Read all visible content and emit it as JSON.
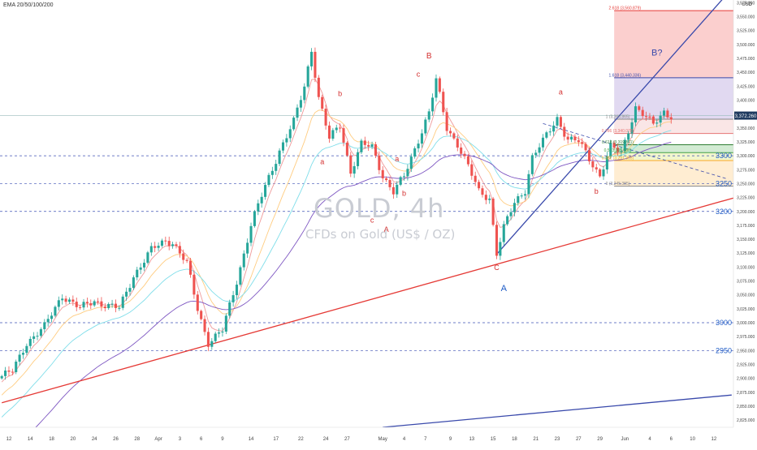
{
  "header": {
    "indicator_legend": "EMA 20/50/100/200",
    "currency": "USD"
  },
  "watermark": {
    "symbol": "GOLD, 4h",
    "description": "CFDs on Gold (US$ / OZ)"
  },
  "current_price_tag": "3,372.260",
  "colors": {
    "up": "#26a69a",
    "down": "#ef5350",
    "trendline_red": "#e53935",
    "trendline_blue": "#3949ab",
    "wave_red": "#d32f2f",
    "wave_blue": "#1e5bc6",
    "ema20": "#ef9a9a",
    "ema50": "#ffcc80",
    "ema100": "#80deea",
    "ema200": "#7e57c2",
    "price_tag_bg": "#1e3a5f"
  },
  "chart_data": {
    "type": "candlestick",
    "symbol": "GOLD",
    "timeframe": "4h",
    "title": "GOLD, 4h",
    "subtitle": "CFDs on Gold (US$ / OZ)",
    "ylim": [
      2812,
      3580
    ],
    "y_ticks": [
      2825,
      2850,
      2875,
      2900,
      2925,
      2950,
      2975,
      3000,
      3025,
      3050,
      3075,
      3100,
      3125,
      3150,
      3175,
      3200,
      3225,
      3250,
      3275,
      3300,
      3325,
      3350,
      3375,
      3400,
      3425,
      3450,
      3475,
      3500,
      3525,
      3550,
      3575
    ],
    "x_ticks": [
      {
        "label": "12",
        "slot": 2
      },
      {
        "label": "14",
        "slot": 8
      },
      {
        "label": "18",
        "slot": 14
      },
      {
        "label": "20",
        "slot": 20
      },
      {
        "label": "24",
        "slot": 26
      },
      {
        "label": "26",
        "slot": 32
      },
      {
        "label": "28",
        "slot": 38
      },
      {
        "label": "Apr",
        "slot": 44
      },
      {
        "label": "3",
        "slot": 50
      },
      {
        "label": "6",
        "slot": 56
      },
      {
        "label": "9",
        "slot": 62
      },
      {
        "label": "14",
        "slot": 70
      },
      {
        "label": "17",
        "slot": 77
      },
      {
        "label": "22",
        "slot": 84
      },
      {
        "label": "24",
        "slot": 91
      },
      {
        "label": "27",
        "slot": 97
      },
      {
        "label": "May",
        "slot": 107
      },
      {
        "label": "4",
        "slot": 113
      },
      {
        "label": "7",
        "slot": 119
      },
      {
        "label": "9",
        "slot": 126
      },
      {
        "label": "13",
        "slot": 132
      },
      {
        "label": "15",
        "slot": 138
      },
      {
        "label": "18",
        "slot": 144
      },
      {
        "label": "21",
        "slot": 150
      },
      {
        "label": "23",
        "slot": 156
      },
      {
        "label": "27",
        "slot": 162
      },
      {
        "label": "29",
        "slot": 168
      },
      {
        "label": "Jun",
        "slot": 175
      },
      {
        "label": "4",
        "slot": 182
      },
      {
        "label": "6",
        "slot": 188
      },
      {
        "label": "10",
        "slot": 194
      },
      {
        "label": "12",
        "slot": 200
      }
    ],
    "anchors": [
      [
        0,
        2904
      ],
      [
        3,
        2912
      ],
      [
        7,
        2965
      ],
      [
        12,
        2992
      ],
      [
        17,
        3050
      ],
      [
        22,
        3025
      ],
      [
        26,
        3040
      ],
      [
        30,
        3030
      ],
      [
        33,
        3025
      ],
      [
        37,
        3085
      ],
      [
        42,
        3130
      ],
      [
        46,
        3148
      ],
      [
        48,
        3145
      ],
      [
        52,
        3105
      ],
      [
        55,
        3025
      ],
      [
        58,
        2965
      ],
      [
        62,
        2985
      ],
      [
        66,
        3075
      ],
      [
        70,
        3175
      ],
      [
        74,
        3245
      ],
      [
        78,
        3310
      ],
      [
        82,
        3360
      ],
      [
        85,
        3425
      ],
      [
        87,
        3492
      ],
      [
        89,
        3405
      ],
      [
        92,
        3330
      ],
      [
        95,
        3355
      ],
      [
        98,
        3272
      ],
      [
        101,
        3320
      ],
      [
        104,
        3315
      ],
      [
        107,
        3265
      ],
      [
        110,
        3235
      ],
      [
        113,
        3262
      ],
      [
        117,
        3330
      ],
      [
        120,
        3378
      ],
      [
        122,
        3435
      ],
      [
        125,
        3350
      ],
      [
        128,
        3322
      ],
      [
        131,
        3280
      ],
      [
        134,
        3235
      ],
      [
        137,
        3225
      ],
      [
        139,
        3125
      ],
      [
        141,
        3170
      ],
      [
        144,
        3215
      ],
      [
        147,
        3240
      ],
      [
        149,
        3298
      ],
      [
        152,
        3325
      ],
      [
        156,
        3368
      ],
      [
        159,
        3330
      ],
      [
        162,
        3325
      ],
      [
        165,
        3295
      ],
      [
        168,
        3265
      ],
      [
        171,
        3315
      ],
      [
        174,
        3305
      ],
      [
        178,
        3388
      ],
      [
        180,
        3375
      ],
      [
        183,
        3355
      ],
      [
        186,
        3380
      ],
      [
        188,
        3372
      ]
    ],
    "emas": [
      {
        "name": "EMA 20",
        "period": 20,
        "color": "#ef9a9a"
      },
      {
        "name": "EMA 50",
        "period": 50,
        "color": "#ffcc80"
      },
      {
        "name": "EMA 100",
        "period": 100,
        "color": "#80deea"
      },
      {
        "name": "EMA 200",
        "period": 200,
        "color": "#7e57c2"
      }
    ],
    "levels": [
      {
        "price": 3300,
        "label": "3300"
      },
      {
        "price": 3250,
        "label": "3250"
      },
      {
        "price": 3200,
        "label": "3200"
      },
      {
        "price": 3000,
        "label": "3000"
      },
      {
        "price": 2950,
        "label": "2950"
      }
    ],
    "fib": {
      "base_slot": 174,
      "top_slot": 188,
      "lines": [
        {
          "label": "2.618 (3,560.879)",
          "price": 3560.879,
          "color": "#e53935"
        },
        {
          "label": "1.618 (3,440.336)",
          "price": 3440.336,
          "color": "#3949ab"
        },
        {
          "label": "1 (3,365.865)",
          "price": 3365.865,
          "color": "#888888"
        },
        {
          "label": "0.786 (3,340.078)",
          "price": 3340.078,
          "color": "#e57373"
        },
        {
          "label": "0.618 (3,319.811)",
          "price": 3319.811,
          "color": "#2e7d32"
        },
        {
          "label": "0.5 (3,305.588)",
          "price": 3305.588,
          "color": "#43a047"
        },
        {
          "label": "0.382 (3,291.365)",
          "price": 3291.365,
          "color": "#f9a825"
        },
        {
          "label": "0 (3,245.385)",
          "price": 3245.385,
          "color": "#888888"
        }
      ]
    },
    "trendlines": [
      {
        "color": "#e53935",
        "from": [
          0,
          2856
        ],
        "to": [
          206,
          3225
        ]
      },
      {
        "color": "#3949ab",
        "from": [
          139,
          3123
        ],
        "to": [
          205,
          3600
        ]
      },
      {
        "color": "#3949ab",
        "from": [
          107,
          2812
        ],
        "to": [
          205,
          2870
        ]
      },
      {
        "color": "#3949ab",
        "from": [
          152,
          3358
        ],
        "to": [
          204,
          3258
        ],
        "dashed": true
      }
    ],
    "wave_labels": [
      {
        "text": "a",
        "slot": 90,
        "price": 3285,
        "color": "#d32f2f",
        "size": 9
      },
      {
        "text": "b",
        "slot": 95,
        "price": 3407,
        "color": "#d32f2f",
        "size": 9
      },
      {
        "text": "B",
        "slot": 120,
        "price": 3475,
        "color": "#d32f2f",
        "size": 10
      },
      {
        "text": "c",
        "slot": 117,
        "price": 3442,
        "color": "#d32f2f",
        "size": 9
      },
      {
        "text": "a",
        "slot": 111,
        "price": 3290,
        "color": "#d32f2f",
        "size": 9
      },
      {
        "text": "b",
        "slot": 113,
        "price": 3228,
        "color": "#d32f2f",
        "size": 9
      },
      {
        "text": "c",
        "slot": 104,
        "price": 3180,
        "color": "#d32f2f",
        "size": 9
      },
      {
        "text": "A",
        "slot": 108,
        "price": 3163,
        "color": "#d32f2f",
        "size": 9
      },
      {
        "text": "C",
        "slot": 139,
        "price": 3095,
        "color": "#d32f2f",
        "size": 9
      },
      {
        "text": "A",
        "slot": 141,
        "price": 3057,
        "color": "#1e5bc6",
        "size": 11
      },
      {
        "text": "a",
        "slot": 157,
        "price": 3410,
        "color": "#d32f2f",
        "size": 9
      },
      {
        "text": "b",
        "slot": 167,
        "price": 3232,
        "color": "#d32f2f",
        "size": 9
      },
      {
        "text": "B?",
        "slot": 184,
        "price": 3480,
        "color": "#3949ab",
        "size": 11
      }
    ]
  }
}
